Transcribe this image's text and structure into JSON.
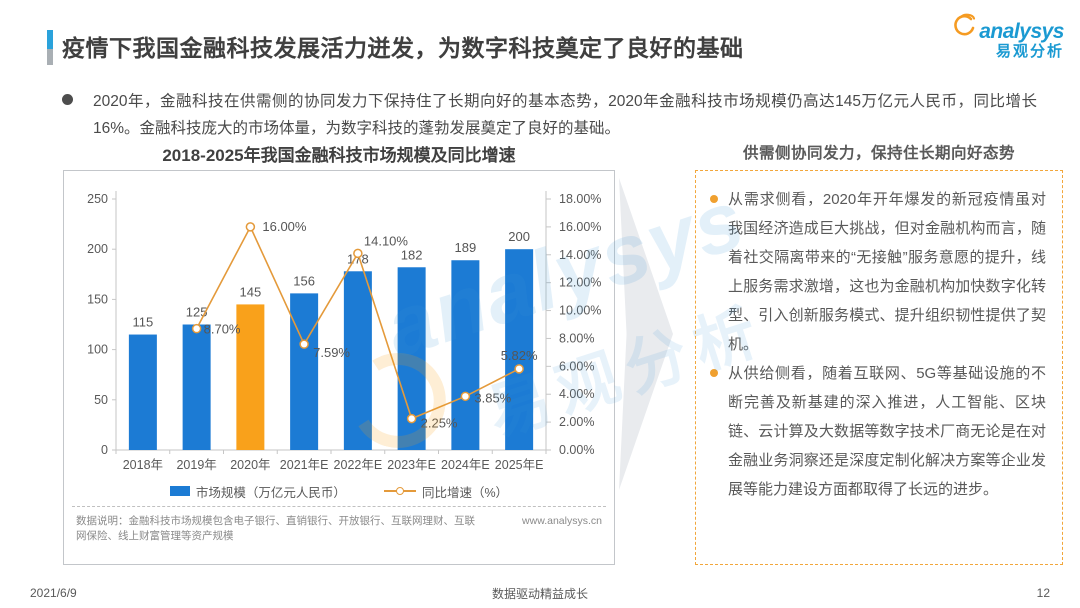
{
  "slide": {
    "title": "疫情下我国金融科技发展活力迸发，为数字科技奠定了良好的基础",
    "logo": {
      "brand": "analysys",
      "brand_cn": "易观分析"
    },
    "summary_bullet": "2020年，金融科技在供需侧的协同发力下保持住了长期向好的基本态势，2020年金融科技市场规模仍高达145万亿元人民币，同比增长16%。金融科技庞大的市场体量，为数字科技的蓬勃发展奠定了良好的基础。",
    "footer": {
      "date": "2021/6/9",
      "center": "数据驱动精益成长",
      "page": "12"
    }
  },
  "chart_data": {
    "type": "bar+line",
    "title": "2018-2025年我国金融科技市场规模及同比增速",
    "categories": [
      "2018年",
      "2019年",
      "2020年",
      "2021年E",
      "2022年E",
      "2023年E",
      "2024年E",
      "2025年E"
    ],
    "series": [
      {
        "name": "市场规模（万亿元人民币）",
        "type": "bar",
        "values": [
          115,
          125,
          145,
          156,
          178,
          182,
          189,
          200
        ],
        "highlight_index": 2
      },
      {
        "name": "同比增速（%）",
        "type": "line",
        "values": [
          null,
          8.7,
          16.0,
          7.59,
          14.1,
          2.25,
          3.85,
          5.82
        ],
        "point_labels": [
          "",
          "8.70%",
          "16.00%",
          "7.59%",
          "14.10%",
          "2.25%",
          "3.85%",
          "5.82%"
        ]
      }
    ],
    "left_axis": {
      "min": 0,
      "max": 250,
      "step": 50
    },
    "right_axis": {
      "min": 0,
      "max": 18,
      "step": 2,
      "decimals": 2,
      "suffix": "%"
    },
    "legend_position": "bottom",
    "gridlines": false,
    "colors": {
      "bar": "#1c7bd4",
      "bar_highlight": "#f9a11b",
      "line": "#e49a3b",
      "axis_text": "#595959"
    },
    "note": "数据说明：金融科技市场规模包含电子银行、直销银行、开放银行、互联网理财、互联网保险、线上财富管理等资产规模",
    "source": "www.analysys.cn"
  },
  "right_panel": {
    "header": "供需侧协同发力，保持住长期向好态势",
    "bullets": [
      "从需求侧看，2020年开年爆发的新冠疫情虽对我国经济造成巨大挑战，但对金融机构而言，随着社交隔离带来的“无接触”服务意愿的提升，线上服务需求激增，这也为金融机构加快数字化转型、引入创新服务模式、提升组织韧性提供了契机。",
      "从供给侧看，随着互联网、5G等基础设施的不断完善及新基建的深入推进，人工智能、区块链、云计算及大数据等数字技术厂商无论是在对金融业务洞察还是深度定制化解决方案等企业发展等能力建设方面都取得了长远的进步。"
    ]
  },
  "watermark": {
    "en": "analysys",
    "cn": "易观分析"
  }
}
